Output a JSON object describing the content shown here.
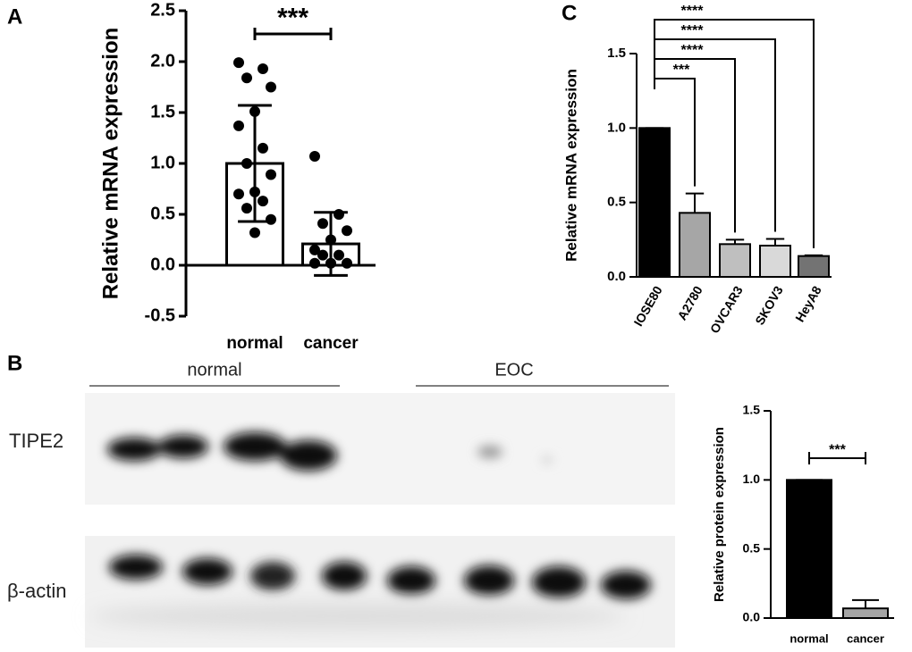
{
  "blot": {
    "label": "B",
    "groups": [
      "normal",
      "EOC"
    ],
    "rows": [
      "TIPE2",
      "β-actin"
    ]
  },
  "chart_data": [
    {
      "type": "bar",
      "panel": "A",
      "y_label": "Relative mRNA expression",
      "categories": [
        "normal",
        "cancer"
      ],
      "values": [
        1.0,
        0.21
      ],
      "errors": [
        0.57,
        0.31
      ],
      "error_bars": "both",
      "colors": [
        "#ffffff",
        "#ffffff"
      ],
      "points": [
        [
          1.99,
          1.93,
          1.84,
          1.75,
          1.51,
          1.37,
          1.15,
          1.0,
          0.89,
          0.72,
          0.7,
          0.63,
          0.56,
          0.45,
          0.32
        ],
        [
          1.07,
          0.5,
          0.41,
          0.34,
          0.25,
          0.15,
          0.1,
          0.1,
          0.02,
          0.02,
          0.02
        ]
      ],
      "annotations": [
        "***"
      ],
      "ylim": [
        -0.5,
        2.5
      ],
      "yticks": [
        -0.5,
        {
          "value": 0,
          "label": "0.0"
        },
        0.5,
        {
          "value": 1,
          "label": "1.0"
        },
        1.5,
        {
          "value": 2,
          "label": "2.0"
        },
        2.5
      ]
    },
    {
      "type": "bar",
      "panel": "C",
      "y_label": "Relative mRNA expression",
      "categories": [
        "IOSE80",
        "A2780",
        "OVCAR3",
        "SKOV3",
        "HeyA8"
      ],
      "values": [
        1.0,
        0.43,
        0.22,
        0.21,
        0.14
      ],
      "errors": [
        0,
        0.13,
        0.03,
        0.045,
        0.005
      ],
      "error_bars": "up",
      "colors": [
        "#000000",
        "#a6a6a6",
        "#bfbfbf",
        "#d9d9d9",
        "#737373"
      ],
      "annotations": [
        "***",
        "****",
        "****",
        "****"
      ],
      "ylim": [
        0,
        1.5
      ],
      "yticks": [
        {
          "value": 0,
          "label": "0.0"
        },
        0.5,
        {
          "value": 1,
          "label": "1.0"
        },
        1.5
      ]
    },
    {
      "type": "bar",
      "y_label": "Relative protein expression",
      "categories": [
        "normal",
        "cancer"
      ],
      "values": [
        1.0,
        0.07
      ],
      "errors": [
        0,
        0.06
      ],
      "error_bars": "up",
      "colors": [
        "#000000",
        "#a6a6a6"
      ],
      "annotations": [
        "***"
      ],
      "ylim": [
        0,
        1.5
      ],
      "yticks": [
        {
          "value": 0,
          "label": "0.0"
        },
        0.5,
        {
          "value": 1,
          "label": "1.0"
        },
        1.5
      ]
    }
  ]
}
